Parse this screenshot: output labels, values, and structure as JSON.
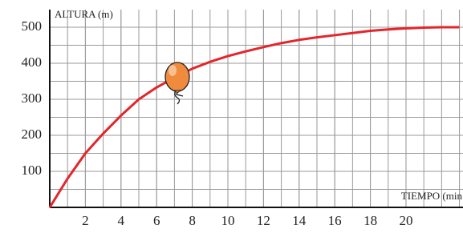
{
  "chart_data": {
    "type": "line",
    "y_label": "ALTURA (m)",
    "x_label": "TIEMPO (min",
    "x": [
      0,
      1,
      2,
      3,
      4,
      5,
      6,
      7,
      8,
      9,
      10,
      11,
      12,
      13,
      14,
      15,
      16,
      17,
      18,
      19,
      20,
      21,
      22,
      23
    ],
    "series": [
      {
        "color": "#e3262b",
        "values": [
          0,
          80,
          150,
          205,
          255,
          300,
          333,
          360,
          385,
          404,
          420,
          433,
          445,
          456,
          465,
          472,
          478,
          484,
          490,
          494,
          497,
          499,
          500,
          500
        ]
      }
    ],
    "xlim": [
      0,
      23.2
    ],
    "ylim": [
      0,
      549
    ],
    "xticks": [
      2,
      4,
      6,
      8,
      10,
      12,
      14,
      16,
      18,
      20
    ],
    "yticks": [
      100,
      200,
      300,
      400,
      500
    ],
    "grid": true
  }
}
